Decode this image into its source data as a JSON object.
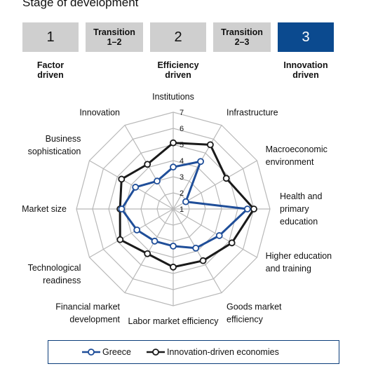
{
  "header": {
    "title": "Stage of development",
    "stages": [
      {
        "number": "1",
        "label": "Factor driven",
        "label_lines": [
          "Factor",
          "driven"
        ],
        "active": false
      },
      {
        "transition_lines": [
          "Transition",
          "1–2"
        ]
      },
      {
        "number": "2",
        "label": "Efficiency driven",
        "label_lines": [
          "Efficiency",
          "driven"
        ],
        "active": false
      },
      {
        "transition_lines": [
          "Transition",
          "2–3"
        ]
      },
      {
        "number": "3",
        "label": "Innovation driven",
        "label_lines": [
          "Innovation",
          "driven"
        ],
        "active": true
      }
    ]
  },
  "colors": {
    "greece": "#1f4e99",
    "innovation_driven": "#1a1a1a",
    "grid": "#b8b8b8",
    "active_stage": "#0b4a8f",
    "inactive_stage": "#cfcfcf"
  },
  "chart_data": {
    "type": "radar",
    "axes": [
      {
        "name": "Institutions",
        "lines": [
          "Institutions"
        ]
      },
      {
        "name": "Infrastructure",
        "lines": [
          "Infrastructure"
        ]
      },
      {
        "name": "Macroeconomic environment",
        "lines": [
          "Macroeconomic",
          "environment"
        ]
      },
      {
        "name": "Health and primary education",
        "lines": [
          "Health and",
          "primary",
          "education"
        ]
      },
      {
        "name": "Higher education and training",
        "lines": [
          "Higher education",
          "and training"
        ]
      },
      {
        "name": "Goods market efficiency",
        "lines": [
          "Goods market",
          "efficiency"
        ]
      },
      {
        "name": "Labor market efficiency",
        "lines": [
          "Labor market efficiency"
        ]
      },
      {
        "name": "Financial market development",
        "lines": [
          "Financial market",
          "development"
        ]
      },
      {
        "name": "Technological readiness",
        "lines": [
          "Technological",
          "readiness"
        ]
      },
      {
        "name": "Market size",
        "lines": [
          "Market size"
        ]
      },
      {
        "name": "Business sophistication",
        "lines": [
          "Business",
          "sophistication"
        ]
      },
      {
        "name": "Innovation",
        "lines": [
          "Innovation"
        ]
      }
    ],
    "rlim": [
      1,
      7
    ],
    "ticks": [
      "1",
      "2",
      "3",
      "4",
      "5",
      "6",
      "7"
    ],
    "series": [
      {
        "name": "Greece",
        "values": [
          3.6,
          4.4,
          1.9,
          5.6,
          4.3,
          3.8,
          3.3,
          3.3,
          3.6,
          4.2,
          3.7,
          3.0
        ]
      },
      {
        "name": "Innovation-driven economies",
        "values": [
          5.1,
          5.6,
          4.8,
          6.0,
          5.2,
          4.7,
          4.6,
          4.2,
          4.8,
          4.3,
          4.7,
          4.2
        ]
      }
    ],
    "legend_position": "bottom"
  }
}
